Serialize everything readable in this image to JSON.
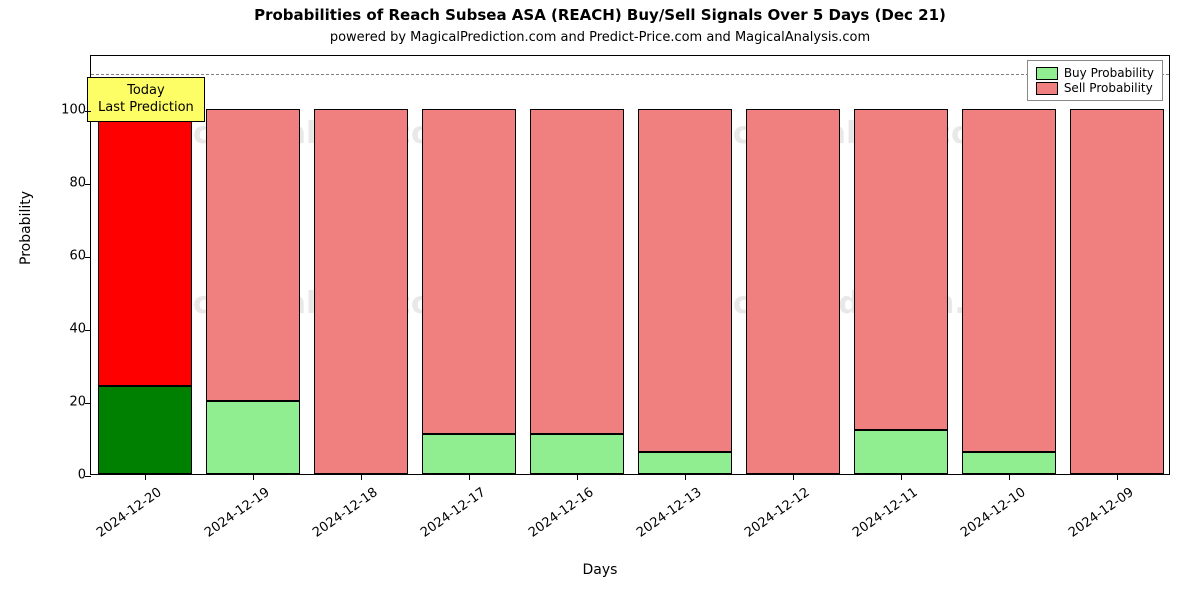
{
  "chart": {
    "type": "stacked-bar",
    "title": "Probabilities of Reach Subsea ASA (REACH) Buy/Sell Signals Over 5 Days (Dec 21)",
    "title_fontsize": 15,
    "title_fontweight": "bold",
    "subtitle": "powered by MagicalPrediction.com and Predict-Price.com and MagicalAnalysis.com",
    "subtitle_fontsize": 13,
    "xlabel": "Days",
    "ylabel": "Probability",
    "label_fontsize": 14,
    "background_color": "#ffffff",
    "border_color": "#000000",
    "ylim": [
      0,
      115
    ],
    "yticks": [
      0,
      20,
      40,
      60,
      80,
      100
    ],
    "hline_y": 110,
    "hline_color": "#808080",
    "hline_dash": "dashed",
    "bar_width": 0.87,
    "bar_border_color": "#000000",
    "categories": [
      "2024-12-20",
      "2024-12-19",
      "2024-12-18",
      "2024-12-17",
      "2024-12-16",
      "2024-12-13",
      "2024-12-12",
      "2024-12-11",
      "2024-12-10",
      "2024-12-09"
    ],
    "buy_values": [
      24,
      20,
      0,
      11,
      11,
      6,
      0,
      12,
      6,
      0
    ],
    "sell_values": [
      76,
      80,
      100,
      89,
      89,
      94,
      100,
      88,
      94,
      100
    ],
    "highlight_index": 0,
    "buy_color": "#90ee90",
    "sell_color": "#f08080",
    "buy_color_highlight": "#008000",
    "sell_color_highlight": "#ff0000",
    "xtick_rotation": -35,
    "xtick_fontsize": 13,
    "ytick_fontsize": 13
  },
  "annotation": {
    "line1": "Today",
    "line2": "Last Prediction",
    "background": "#fdfd66",
    "fontsize": 13
  },
  "legend": {
    "buy_label": "Buy Probability",
    "sell_label": "Sell Probability",
    "buy_swatch": "#90ee90",
    "sell_swatch": "#f08080",
    "fontsize": 12
  },
  "watermarks": {
    "text": "MagicalAnalysis.com",
    "text2": "MagicalPrediction.com",
    "color": "rgba(128,128,128,0.18)",
    "fontsize": 30
  }
}
